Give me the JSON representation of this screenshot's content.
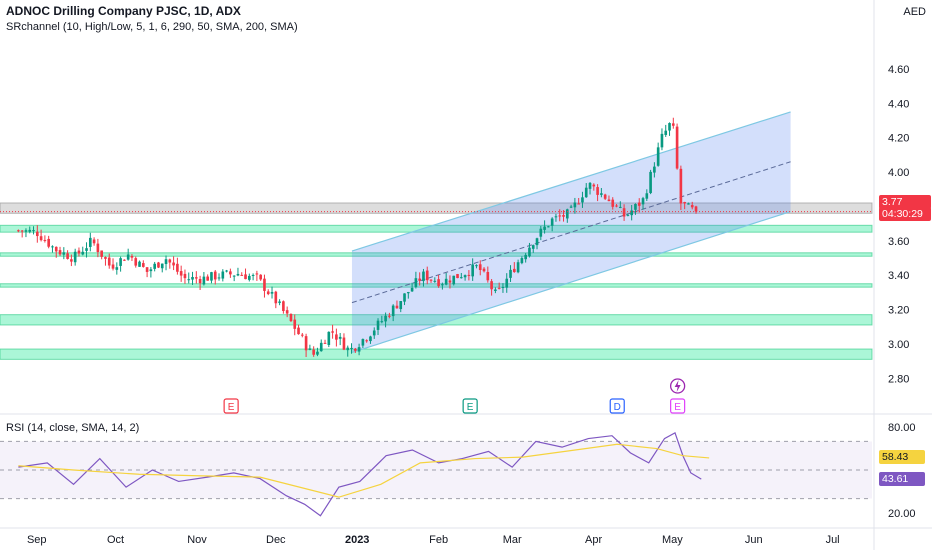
{
  "header": {
    "title": "ADNOC Drilling Company PJSC, 1D, ADX",
    "indicator": "SRchannel (10, High/Low, 5, 1, 6, 290, 50, SMA, 200, SMA)",
    "rsi": "RSI (14, close, SMA, 14, 2)"
  },
  "currency": "AED",
  "price_tag": {
    "value": "3.77",
    "countdown": "04:30:29",
    "color": "#f23645"
  },
  "rsi_tags": {
    "rsi_value": "43.61",
    "ma_value": "58.43"
  },
  "colors": {
    "up": "#089981",
    "down": "#f23645",
    "zone": "#2ee89a",
    "channel": "#4f7ff0",
    "rsi_line": "#7e57c2",
    "rsi_ma": "#f5d33f"
  },
  "chart_data": [
    {
      "type": "candlestick",
      "yaxis_ticks": [
        "4.60",
        "4.40",
        "4.20",
        "4.00",
        "3.80",
        "3.60",
        "3.40",
        "3.20",
        "3.00",
        "2.80"
      ],
      "ylim": [
        2.72,
        4.78
      ],
      "xaxis_ticks": [
        "Sep",
        "Oct",
        "Nov",
        "Dec",
        "2023",
        "Feb",
        "Mar",
        "Apr",
        "May",
        "Jun",
        "Jul"
      ],
      "x_tick_dates": [
        "2022-09-01",
        "2022-10-01",
        "2022-11-01",
        "2022-12-01",
        "2023-01-01",
        "2023-02-01",
        "2023-03-01",
        "2023-04-01",
        "2023-05-01",
        "2023-06-01",
        "2023-07-01"
      ],
      "close_path": [
        [
          "2022-08-25",
          3.66
        ],
        [
          "2022-09-01",
          3.65
        ],
        [
          "2022-09-08",
          3.55
        ],
        [
          "2022-09-15",
          3.5
        ],
        [
          "2022-09-22",
          3.6
        ],
        [
          "2022-09-29",
          3.45
        ],
        [
          "2022-10-06",
          3.52
        ],
        [
          "2022-10-13",
          3.42
        ],
        [
          "2022-10-20",
          3.5
        ],
        [
          "2022-10-27",
          3.38
        ],
        [
          "2022-11-03",
          3.38
        ],
        [
          "2022-11-10",
          3.4
        ],
        [
          "2022-11-17",
          3.41
        ],
        [
          "2022-11-24",
          3.38
        ],
        [
          "2022-12-01",
          3.25
        ],
        [
          "2022-12-08",
          3.1
        ],
        [
          "2022-12-15",
          2.93
        ],
        [
          "2022-12-22",
          3.08
        ],
        [
          "2022-12-29",
          2.96
        ],
        [
          "2023-01-05",
          3.05
        ],
        [
          "2023-01-12",
          3.16
        ],
        [
          "2023-01-19",
          3.28
        ],
        [
          "2023-01-26",
          3.4
        ],
        [
          "2023-02-02",
          3.36
        ],
        [
          "2023-02-09",
          3.4
        ],
        [
          "2023-02-16",
          3.45
        ],
        [
          "2023-02-23",
          3.28
        ],
        [
          "2023-03-02",
          3.45
        ],
        [
          "2023-03-09",
          3.6
        ],
        [
          "2023-03-16",
          3.72
        ],
        [
          "2023-03-23",
          3.76
        ],
        [
          "2023-03-30",
          3.93
        ],
        [
          "2023-04-06",
          3.85
        ],
        [
          "2023-04-13",
          3.74
        ],
        [
          "2023-04-20",
          3.84
        ],
        [
          "2023-04-27",
          4.2
        ],
        [
          "2023-05-01",
          4.3
        ],
        [
          "2023-05-04",
          3.82
        ],
        [
          "2023-05-08",
          3.78
        ],
        [
          "2023-05-10",
          3.77
        ]
      ],
      "candle_count": 180,
      "last_price": 3.77,
      "support_resistance_zones": [
        [
          3.76,
          3.82
        ],
        [
          3.65,
          3.69
        ],
        [
          3.51,
          3.53
        ],
        [
          3.33,
          3.35
        ],
        [
          3.11,
          3.17
        ],
        [
          2.91,
          2.97
        ]
      ],
      "regression_channel": {
        "start_date": "2022-12-30",
        "end_date": "2023-06-15",
        "upper": [
          3.54,
          4.35
        ],
        "lower": [
          2.95,
          3.77
        ],
        "middle": [
          3.24,
          4.06
        ]
      },
      "event_markers": [
        {
          "date": "2022-11-14",
          "label": "E",
          "color": "#f23645"
        },
        {
          "date": "2023-02-13",
          "label": "E",
          "color": "#089981"
        },
        {
          "date": "2023-04-10",
          "label": "D",
          "color": "#2962ff"
        },
        {
          "date": "2023-05-03",
          "label": "E",
          "color": "#e040fb"
        }
      ]
    },
    {
      "type": "line",
      "name": "RSI",
      "yaxis_ticks": [
        "80.00",
        "20.00"
      ],
      "ylim": [
        15,
        85
      ],
      "bands": [
        30,
        50,
        70
      ],
      "rsi_path": [
        [
          "2022-08-25",
          52
        ],
        [
          "2022-09-05",
          55
        ],
        [
          "2022-09-15",
          40
        ],
        [
          "2022-09-25",
          58
        ],
        [
          "2022-10-05",
          38
        ],
        [
          "2022-10-15",
          50
        ],
        [
          "2022-10-25",
          42
        ],
        [
          "2022-11-05",
          45
        ],
        [
          "2022-11-15",
          48
        ],
        [
          "2022-11-25",
          44
        ],
        [
          "2022-12-05",
          32
        ],
        [
          "2022-12-12",
          26
        ],
        [
          "2022-12-18",
          18
        ],
        [
          "2022-12-25",
          38
        ],
        [
          "2023-01-02",
          42
        ],
        [
          "2023-01-12",
          60
        ],
        [
          "2023-01-22",
          64
        ],
        [
          "2023-02-01",
          55
        ],
        [
          "2023-02-10",
          58
        ],
        [
          "2023-02-20",
          63
        ],
        [
          "2023-03-01",
          52
        ],
        [
          "2023-03-10",
          70
        ],
        [
          "2023-03-20",
          66
        ],
        [
          "2023-03-30",
          72
        ],
        [
          "2023-04-08",
          74
        ],
        [
          "2023-04-15",
          62
        ],
        [
          "2023-04-22",
          55
        ],
        [
          "2023-04-28",
          72
        ],
        [
          "2023-05-02",
          76
        ],
        [
          "2023-05-05",
          60
        ],
        [
          "2023-05-08",
          48
        ],
        [
          "2023-05-12",
          43.61
        ]
      ],
      "ma_path": [
        [
          "2022-08-25",
          53
        ],
        [
          "2022-09-15",
          50
        ],
        [
          "2022-10-10",
          47
        ],
        [
          "2022-11-01",
          46
        ],
        [
          "2022-11-25",
          45
        ],
        [
          "2022-12-10",
          38
        ],
        [
          "2022-12-25",
          31
        ],
        [
          "2023-01-10",
          40
        ],
        [
          "2023-01-25",
          55
        ],
        [
          "2023-02-15",
          58
        ],
        [
          "2023-03-05",
          59
        ],
        [
          "2023-03-25",
          64
        ],
        [
          "2023-04-10",
          68
        ],
        [
          "2023-04-25",
          65
        ],
        [
          "2023-05-05",
          60
        ],
        [
          "2023-05-15",
          58.43
        ]
      ]
    }
  ]
}
